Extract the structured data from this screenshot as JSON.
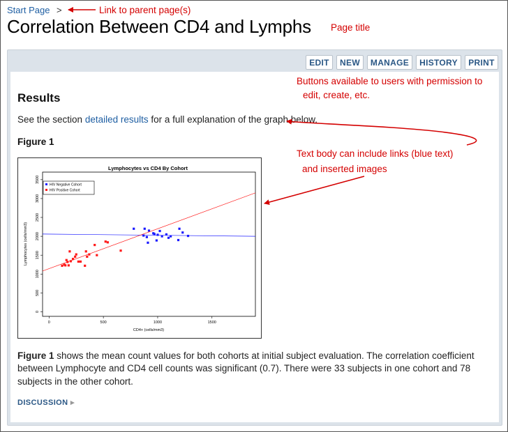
{
  "breadcrumb": {
    "link": "Start Page",
    "separator": ">"
  },
  "page_title": "Correlation Between CD4 and Lymphs",
  "annotations": {
    "parent_link": "Link to parent page(s)",
    "page_title": "Page title",
    "buttons_line1": "Buttons available to users with permission to",
    "buttons_line2": "edit, create, etc.",
    "text_line1": "Text body can include links (blue text)",
    "text_line2": "and inserted images",
    "color": "#d40000"
  },
  "toolbar": {
    "edit": "EDIT",
    "new": "NEW",
    "manage": "MANAGE",
    "history": "HISTORY",
    "print": "PRINT"
  },
  "content": {
    "heading": "Results",
    "intro_prefix": "See the section ",
    "intro_link": "detailed results",
    "intro_suffix": " for a full explanation of the graph below.",
    "figure_label": "Figure 1",
    "caption_bold": "Figure 1",
    "caption_text": " shows the mean count values for both cohorts at initial subject evaluation. The correlation coefficient between Lymphocyte and CD4 cell counts was significant (0.7). There were 33 subjects in one cohort and 78 subjects in the other cohort.",
    "discussion": "DISCUSSION",
    "discussion_arrow": "▸"
  },
  "chart_data": {
    "type": "scatter",
    "title": "Lymphocytes vs CD4 By Cohort",
    "xlabel": "CD4+ (cells/mm3)",
    "ylabel": "Lymphocytes (cells/mm3)",
    "xlim": [
      -60,
      1900
    ],
    "ylim": [
      -120,
      3700
    ],
    "x_ticks": [
      0,
      500,
      1000,
      1500
    ],
    "y_ticks": [
      0,
      500,
      1000,
      1500,
      2000,
      2500,
      3000,
      3500
    ],
    "legend_position": "top-left",
    "series": [
      {
        "name": "HIV Negative Cohort",
        "color": "#1a1aff",
        "points": [
          [
            780,
            2200
          ],
          [
            870,
            2020
          ],
          [
            880,
            2200
          ],
          [
            900,
            1980
          ],
          [
            910,
            1830
          ],
          [
            920,
            2150
          ],
          [
            960,
            2080
          ],
          [
            970,
            2060
          ],
          [
            990,
            1890
          ],
          [
            1000,
            2040
          ],
          [
            1020,
            2140
          ],
          [
            1040,
            2000
          ],
          [
            1080,
            2050
          ],
          [
            1100,
            1960
          ],
          [
            1120,
            2000
          ],
          [
            1190,
            1900
          ],
          [
            1200,
            2200
          ],
          [
            1230,
            2100
          ],
          [
            1280,
            2010
          ]
        ],
        "fit": [
          [
            -60,
            2060
          ],
          [
            1900,
            2000
          ]
        ]
      },
      {
        "name": "HIV Positive Cohort",
        "color": "#ff1a1a",
        "points": [
          [
            120,
            1220
          ],
          [
            140,
            1250
          ],
          [
            150,
            1230
          ],
          [
            160,
            1370
          ],
          [
            170,
            1320
          ],
          [
            180,
            1230
          ],
          [
            190,
            1600
          ],
          [
            200,
            1340
          ],
          [
            220,
            1400
          ],
          [
            240,
            1460
          ],
          [
            250,
            1520
          ],
          [
            270,
            1330
          ],
          [
            290,
            1330
          ],
          [
            330,
            1220
          ],
          [
            340,
            1600
          ],
          [
            350,
            1460
          ],
          [
            370,
            1520
          ],
          [
            420,
            1770
          ],
          [
            440,
            1500
          ],
          [
            520,
            1860
          ],
          [
            540,
            1840
          ],
          [
            660,
            1620
          ]
        ],
        "fit": [
          [
            -60,
            1080
          ],
          [
            1900,
            3150
          ]
        ]
      }
    ]
  }
}
